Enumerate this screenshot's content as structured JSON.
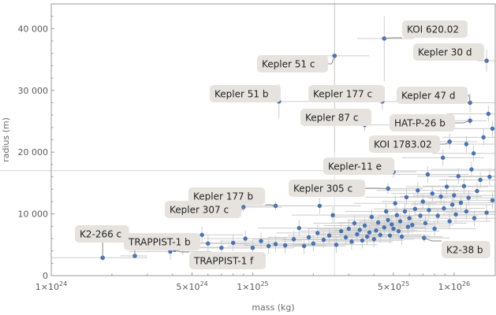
{
  "chart_data": {
    "type": "scatter",
    "title": "",
    "xlabel": "mass (kg)",
    "ylabel": "radius (m)",
    "x_scale": "log",
    "xlim": [
      1e+24,
      1.6e+26
    ],
    "ylim": [
      0,
      44000
    ],
    "x_ticks": [
      {
        "value": 1e+24,
        "label": "1×10",
        "exp": "24"
      },
      {
        "value": 5e+24,
        "label": "5×10",
        "exp": "24"
      },
      {
        "value": 1e+25,
        "label": "1×10",
        "exp": "25"
      },
      {
        "value": 5e+25,
        "label": "5×10",
        "exp": "25"
      },
      {
        "value": 1e+26,
        "label": "1×10",
        "exp": "26"
      }
    ],
    "y_ticks": [
      {
        "value": 0,
        "label": "0"
      },
      {
        "value": 10000,
        "label": "10 000"
      },
      {
        "value": 20000,
        "label": "20 000"
      },
      {
        "value": 30000,
        "label": "30 000"
      },
      {
        "value": 40000,
        "label": "40 000"
      }
    ],
    "reference_lines": {
      "y": 17000,
      "x": 2.55e+25
    },
    "colors": {
      "point": "#4a72b0",
      "error_bar": "#cccccc",
      "axis": "#999999",
      "label_bg": "#e6e3df",
      "label_line": "#8a8a8a"
    },
    "labeled_points": [
      {
        "name": "KOI 620.02",
        "x": 4.5e+25,
        "y": 38400,
        "xerr": [
          3.3e+25,
          6.3e+25
        ],
        "yerr": [
          31500,
          42000
        ]
      },
      {
        "name": "Kepler 30 d",
        "x": 1.45e+26,
        "y": 34800,
        "xerr": [
          1.3e+26,
          1.6e+26
        ],
        "yerr": [
          33000,
          36500
        ]
      },
      {
        "name": "Kepler 51 c",
        "x": 2.55e+25,
        "y": 35600,
        "xerr": [
          1.75e+25,
          3.8e+25
        ],
        "yerr": [
          20000,
          44000
        ]
      },
      {
        "name": "Kepler 51 b",
        "x": 1.35e+25,
        "y": 28200,
        "xerr": [
          8.5e+24,
          2.2e+25
        ],
        "yerr": [
          25500,
          31000
        ]
      },
      {
        "name": "Kepler 177 c",
        "x": 4.4e+25,
        "y": 28200,
        "xerr": [
          3.2e+25,
          5.8e+25
        ],
        "yerr": [
          26800,
          29600
        ]
      },
      {
        "name": "Kepler 47 d",
        "x": 1.2e+26,
        "y": 28000,
        "xerr": [
          6.5e+25,
          1.6e+26
        ],
        "yerr": [
          26500,
          29500
        ]
      },
      {
        "name": "Kepler 87 c",
        "x": 3.6e+25,
        "y": 24400,
        "xerr": [
          2.6e+25,
          4.8e+25
        ],
        "yerr": [
          23400,
          25400
        ]
      },
      {
        "name": "HAT-P-26 b",
        "x": 1.2e+26,
        "y": 25100,
        "xerr": [
          9.5e+25,
          1.45e+26
        ],
        "yerr": [
          24300,
          25900
        ]
      },
      {
        "name": "KOI 1783.02",
        "x": 9.5e+25,
        "y": 21700,
        "xerr": [
          6.5e+25,
          1.3e+26
        ],
        "yerr": [
          20500,
          23000
        ]
      },
      {
        "name": "Kepler-11 e",
        "x": 5e+25,
        "y": 16800,
        "xerr": [
          3.8e+25,
          6.5e+25
        ],
        "yerr": [
          15800,
          17800
        ]
      },
      {
        "name": "Kepler 305 c",
        "x": 4.7e+25,
        "y": 14100,
        "xerr": [
          2.5e+25,
          7e+25
        ],
        "yerr": [
          13200,
          15000
        ]
      },
      {
        "name": "Kepler 177 b",
        "x": 1.3e+25,
        "y": 11300,
        "xerr": [
          7e+24,
          2e+25
        ],
        "yerr": [
          10600,
          12000
        ]
      },
      {
        "name": "Kepler 307 c",
        "x": 9e+24,
        "y": 11100,
        "xerr": [
          5e+24,
          1.4e+25
        ],
        "yerr": [
          10300,
          11900
        ]
      },
      {
        "name": "K2-266 c",
        "x": 1.8e+24,
        "y": 2900,
        "xerr": [
          1e+24,
          3e+24
        ],
        "yerr": [
          2300,
          3500
        ]
      },
      {
        "name": "TRAPPIST-1 b",
        "x": 2.6e+24,
        "y": 3200,
        "xerr": [
          2.2e+24,
          3e+24
        ],
        "yerr": [
          3000,
          3400
        ]
      },
      {
        "name": "TRAPPIST-1 f",
        "x": 4.1e+24,
        "y": 4200,
        "xerr": [
          3.6e+24,
          4.6e+24
        ],
        "yerr": [
          4000,
          4400
        ]
      },
      {
        "name": "K2-38 b",
        "x": 7.1e+25,
        "y": 6100,
        "xerr": [
          4.8e+25,
          9.5e+25
        ],
        "yerr": [
          5400,
          6800
        ]
      }
    ],
    "points": [
      {
        "x": 3.9e+24,
        "y": 3900
      },
      {
        "x": 4.5e+24,
        "y": 4600
      },
      {
        "x": 5.6e+24,
        "y": 6600
      },
      {
        "x": 6e+24,
        "y": 5200
      },
      {
        "x": 7e+24,
        "y": 4500
      },
      {
        "x": 8e+24,
        "y": 5300
      },
      {
        "x": 9.2e+24,
        "y": 6000
      },
      {
        "x": 1e+25,
        "y": 4500
      },
      {
        "x": 1.1e+25,
        "y": 5600
      },
      {
        "x": 1.2e+25,
        "y": 4800
      },
      {
        "x": 1.3e+25,
        "y": 5100
      },
      {
        "x": 1.45e+25,
        "y": 4900
      },
      {
        "x": 1.6e+25,
        "y": 5900
      },
      {
        "x": 1.7e+25,
        "y": 7700
      },
      {
        "x": 1.8e+25,
        "y": 4800
      },
      {
        "x": 1.9e+25,
        "y": 6200
      },
      {
        "x": 2e+25,
        "y": 5200
      },
      {
        "x": 2.1e+25,
        "y": 6900
      },
      {
        "x": 2.15e+25,
        "y": 11300
      },
      {
        "x": 2.25e+25,
        "y": 5800
      },
      {
        "x": 2.4e+25,
        "y": 6500
      },
      {
        "x": 2.5e+25,
        "y": 9800
      },
      {
        "x": 2.6e+25,
        "y": 5000
      },
      {
        "x": 2.75e+25,
        "y": 7200
      },
      {
        "x": 2.9e+25,
        "y": 6200
      },
      {
        "x": 3e+25,
        "y": 7600
      },
      {
        "x": 3.1e+25,
        "y": 5500
      },
      {
        "x": 3.2e+25,
        "y": 8500
      },
      {
        "x": 3.3e+25,
        "y": 6700
      },
      {
        "x": 3.4e+25,
        "y": 7400
      },
      {
        "x": 3.5e+25,
        "y": 5700
      },
      {
        "x": 3.6e+25,
        "y": 8100
      },
      {
        "x": 3.7e+25,
        "y": 6300
      },
      {
        "x": 3.8e+25,
        "y": 7000
      },
      {
        "x": 3.9e+25,
        "y": 9500
      },
      {
        "x": 4e+25,
        "y": 5900
      },
      {
        "x": 4.1e+25,
        "y": 7300
      },
      {
        "x": 4.2e+25,
        "y": 8600
      },
      {
        "x": 4.3e+25,
        "y": 6600
      },
      {
        "x": 4.5e+25,
        "y": 7800
      },
      {
        "x": 4.6e+25,
        "y": 10400
      },
      {
        "x": 4.7e+25,
        "y": 9000
      },
      {
        "x": 4.8e+25,
        "y": 6500
      },
      {
        "x": 4.9e+25,
        "y": 8300
      },
      {
        "x": 5e+25,
        "y": 7600
      },
      {
        "x": 5.1e+25,
        "y": 11700
      },
      {
        "x": 5.2e+25,
        "y": 9800
      },
      {
        "x": 5.3e+25,
        "y": 7200
      },
      {
        "x": 5.4e+25,
        "y": 8800
      },
      {
        "x": 5.5e+25,
        "y": 6300
      },
      {
        "x": 5.7e+25,
        "y": 10400
      },
      {
        "x": 5.8e+25,
        "y": 12700
      },
      {
        "x": 5.9e+25,
        "y": 7900
      },
      {
        "x": 6e+25,
        "y": 9300
      },
      {
        "x": 6.2e+25,
        "y": 8200
      },
      {
        "x": 6.4e+25,
        "y": 10800
      },
      {
        "x": 6.6e+25,
        "y": 13800
      },
      {
        "x": 6.8e+25,
        "y": 9700
      },
      {
        "x": 7e+25,
        "y": 12000
      },
      {
        "x": 7.2e+25,
        "y": 8500
      },
      {
        "x": 7.5e+25,
        "y": 10600
      },
      {
        "x": 7.8e+25,
        "y": 13300
      },
      {
        "x": 8e+25,
        "y": 7600
      },
      {
        "x": 8.3e+25,
        "y": 9700
      },
      {
        "x": 8.6e+25,
        "y": 12800
      },
      {
        "x": 8.9e+25,
        "y": 10900
      },
      {
        "x": 9.2e+25,
        "y": 14400
      },
      {
        "x": 9.5e+25,
        "y": 8800
      },
      {
        "x": 9.8e+25,
        "y": 11500
      },
      {
        "x": 1e+26,
        "y": 13000
      },
      {
        "x": 1.02e+26,
        "y": 9900
      },
      {
        "x": 1.05e+26,
        "y": 16100
      },
      {
        "x": 1.08e+26,
        "y": 11800
      },
      {
        "x": 1.12e+26,
        "y": 14500
      },
      {
        "x": 1.15e+26,
        "y": 10400
      },
      {
        "x": 1.18e+26,
        "y": 12600
      },
      {
        "x": 1.22e+26,
        "y": 17200
      },
      {
        "x": 1.26e+26,
        "y": 9300
      },
      {
        "x": 1.3e+26,
        "y": 13700
      },
      {
        "x": 1.35e+26,
        "y": 15500
      },
      {
        "x": 1.4e+26,
        "y": 22400
      },
      {
        "x": 1.45e+26,
        "y": 10200
      },
      {
        "x": 1.5e+26,
        "y": 16000
      },
      {
        "x": 1.55e+26,
        "y": 12200
      },
      {
        "x": 1.55e+26,
        "y": 23800
      },
      {
        "x": 1.15e+26,
        "y": 21300
      },
      {
        "x": 1.25e+26,
        "y": 19800
      },
      {
        "x": 7.4e+25,
        "y": 16400
      },
      {
        "x": 8.8e+25,
        "y": 19100
      },
      {
        "x": 1.48e+26,
        "y": 26200
      }
    ],
    "label_boxes": [
      {
        "name": "KOI 620.02",
        "text": "KOI 620.02",
        "side": "right"
      },
      {
        "name": "Kepler 30 d",
        "text": "Kepler 30 d",
        "side": "left"
      },
      {
        "name": "Kepler 51 c",
        "text": "Kepler 51 c",
        "side": "left"
      },
      {
        "name": "Kepler 51 b",
        "text": "Kepler 51 b",
        "side": "left"
      },
      {
        "name": "Kepler 177 c",
        "text": "Kepler 177 c",
        "side": "left"
      },
      {
        "name": "Kepler 47 d",
        "text": "Kepler 47 d",
        "side": "left"
      },
      {
        "name": "Kepler 87 c",
        "text": "Kepler 87 c",
        "side": "left"
      },
      {
        "name": "HAT-P-26 b",
        "text": "HAT-P-26 b",
        "side": "left"
      },
      {
        "name": "KOI 1783.02",
        "text": "KOI 1783.02",
        "side": "left"
      },
      {
        "name": "Kepler-11 e",
        "text": "Kepler-11 e",
        "side": "left"
      },
      {
        "name": "Kepler 305 c",
        "text": "Kepler 305 c",
        "side": "left"
      },
      {
        "name": "Kepler 177 b",
        "text": "Kepler 177 b",
        "side": "left"
      },
      {
        "name": "Kepler 307 c",
        "text": "Kepler 307 c",
        "side": "left"
      },
      {
        "name": "K2-266 c",
        "text": "K2-266 c",
        "side": "left"
      },
      {
        "name": "TRAPPIST-1 b",
        "text": "TRAPPIST-1 b",
        "side": "left"
      },
      {
        "name": "TRAPPIST-1 f",
        "text": "TRAPPIST-1 f",
        "side": "right"
      },
      {
        "name": "K2-38 b",
        "text": "K2-38 b",
        "side": "right"
      }
    ]
  }
}
